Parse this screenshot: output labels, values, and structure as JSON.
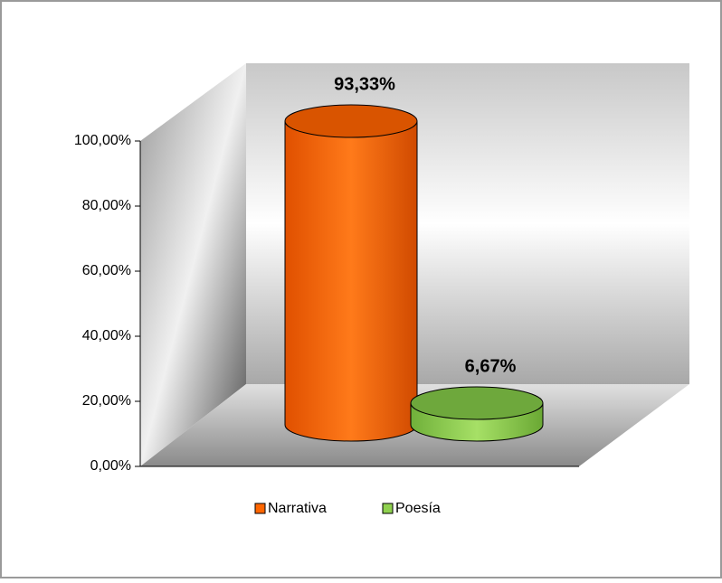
{
  "chart_data": {
    "type": "bar3d",
    "categories": [
      "Narrativa",
      "Poesía"
    ],
    "values": [
      93.33,
      6.67
    ],
    "value_labels": [
      "93,33%",
      "6,67%"
    ],
    "colors": [
      "#ff6600",
      "#8fd14f"
    ],
    "ylim": [
      0,
      100
    ],
    "yticks": [
      {
        "value": 0,
        "label": "0,00%"
      },
      {
        "value": 20,
        "label": "20,00%"
      },
      {
        "value": 40,
        "label": "40,00%"
      },
      {
        "value": 60,
        "label": "60,00%"
      },
      {
        "value": 80,
        "label": "80,00%"
      },
      {
        "value": 100,
        "label": "100,00%"
      }
    ],
    "legend": "bottom"
  }
}
